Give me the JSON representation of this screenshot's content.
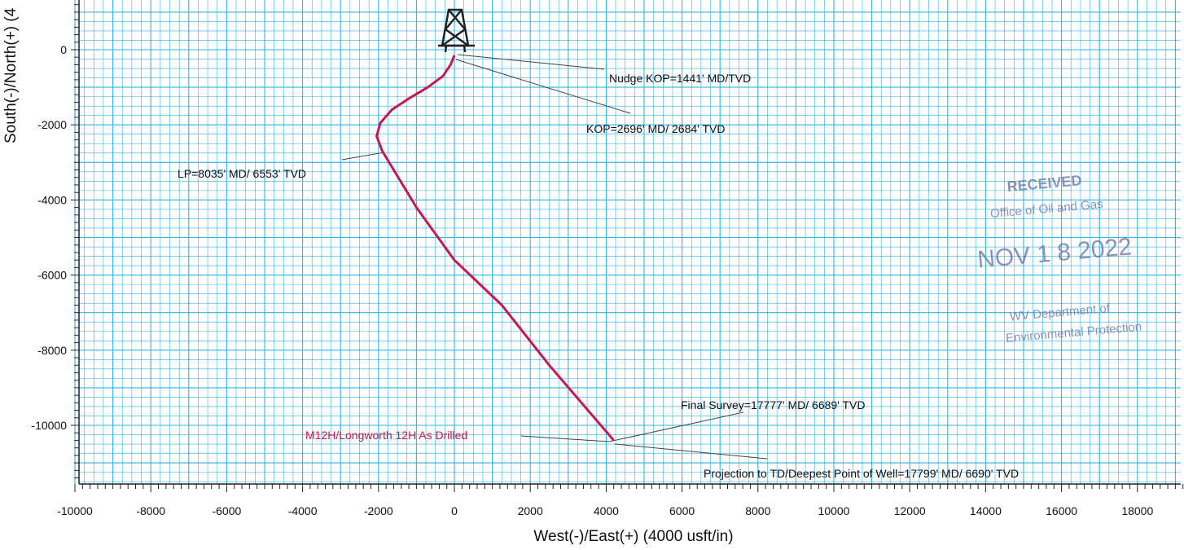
{
  "chart_data": {
    "type": "line",
    "xlabel": "West(-)/East(+) (4000 usft/in)",
    "ylabel": "South(-)/North(+) (4",
    "xlim": [
      -10000,
      19500
    ],
    "ylim": [
      -11500,
      1200
    ],
    "x_ticks": [
      -10000,
      -8000,
      -6000,
      -4000,
      -2000,
      0,
      2000,
      4000,
      6000,
      8000,
      10000,
      12000,
      14000,
      16000,
      18000
    ],
    "y_ticks": [
      0,
      -2000,
      -4000,
      -6000,
      -8000,
      -10000
    ],
    "grid": true,
    "series": [
      {
        "name": "M12H/Longworth 12H As Drilled",
        "color": "#c8174f",
        "x": [
          0,
          -100,
          -300,
          -700,
          -1200,
          -1650,
          -1950,
          -2050,
          -1900,
          -1000,
          0,
          1250,
          2500,
          4200
        ],
        "y": [
          -150,
          -400,
          -700,
          -1000,
          -1300,
          -1600,
          -1950,
          -2300,
          -2700,
          -4200,
          -5600,
          -6800,
          -8400,
          -10400
        ]
      }
    ],
    "annotations": [
      {
        "text": "Nudge KOP=1441' MD/TVD",
        "x": 0,
        "y": -150
      },
      {
        "text": "KOP=2696' MD/ 2684' TVD",
        "x": 0,
        "y": -250
      },
      {
        "text": "LP=8035' MD/ 6553' TVD",
        "x": -1950,
        "y": -2700
      },
      {
        "text": "Final Survey=17777' MD/ 6689' TVD",
        "x": 4200,
        "y": -10400
      },
      {
        "text": "Projection to TD/Deepest Point of Well=17799' MD/ 6690' TVD",
        "x": 4200,
        "y": -10450
      }
    ],
    "series_label": "M12H/Longworth 12H As Drilled"
  },
  "stamp": {
    "line1": "RECEIVED",
    "line2": "Office of Oil and Gas",
    "line3": "NOV 1 8 2022",
    "line4": "WV Department of",
    "line5": "Environmental Protection",
    "color": "#6f7aa6"
  },
  "icons": {
    "rig": "drilling-rig-icon"
  }
}
